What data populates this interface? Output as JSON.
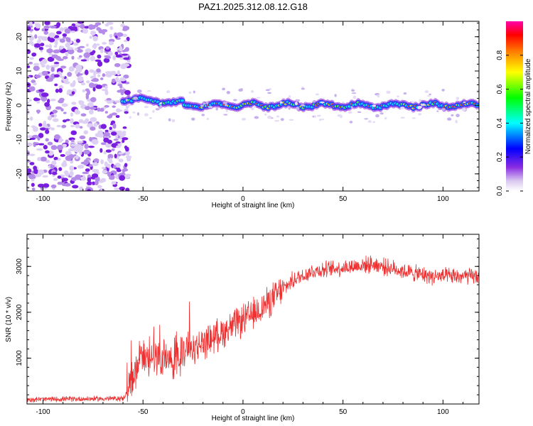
{
  "title": "PAZ1.2025.312.08.12.G18",
  "colors": {
    "snr_line": "#ee3030",
    "colormap": [
      "#ffffff",
      "#8a2be2",
      "#0000ff",
      "#00ffff",
      "#00ff00",
      "#ffff00",
      "#ff7f00",
      "#ff0000",
      "#ff00ff"
    ]
  },
  "chart_data": [
    {
      "type": "heatmap",
      "name": "spectrogram",
      "xlabel": "Height of straight line (km)",
      "ylabel": "Frequency (Hz)",
      "xlim": [
        -108,
        118
      ],
      "ylim": [
        -25,
        24.5
      ],
      "xticks": [
        -100,
        -50,
        0,
        50,
        100
      ],
      "yticks": [
        -20,
        -10,
        0,
        10,
        20
      ],
      "colorbar": {
        "label": "Normalized spectral amplitude",
        "range": [
          0,
          1
        ],
        "ticks": [
          0.0,
          0.2,
          0.4,
          0.6,
          0.8
        ]
      },
      "description_values": {
        "noise_region_km": [
          -108,
          -60
        ],
        "signal_freq_hz": 0,
        "signal_start_km": -60
      }
    },
    {
      "type": "line",
      "name": "snr",
      "xlabel": "Height of straight line (km)",
      "ylabel": "SNR (10 * v/v)",
      "xlim": [
        -108,
        118
      ],
      "ylim": [
        0,
        3700
      ],
      "xticks": [
        -100,
        -50,
        0,
        50,
        100
      ],
      "yticks": [
        1000,
        2000,
        3000
      ],
      "anchors": {
        "x": [
          -108,
          -60,
          -57,
          -52,
          -45,
          -35,
          -25,
          -15,
          -5,
          5,
          15,
          25,
          35,
          45,
          55,
          65,
          75,
          85,
          95,
          105,
          118
        ],
        "y": [
          100,
          120,
          300,
          900,
          1000,
          900,
          1200,
          1450,
          1700,
          1950,
          2300,
          2700,
          2900,
          2950,
          3000,
          3050,
          2950,
          2850,
          2780,
          2780,
          2780
        ]
      }
    }
  ]
}
